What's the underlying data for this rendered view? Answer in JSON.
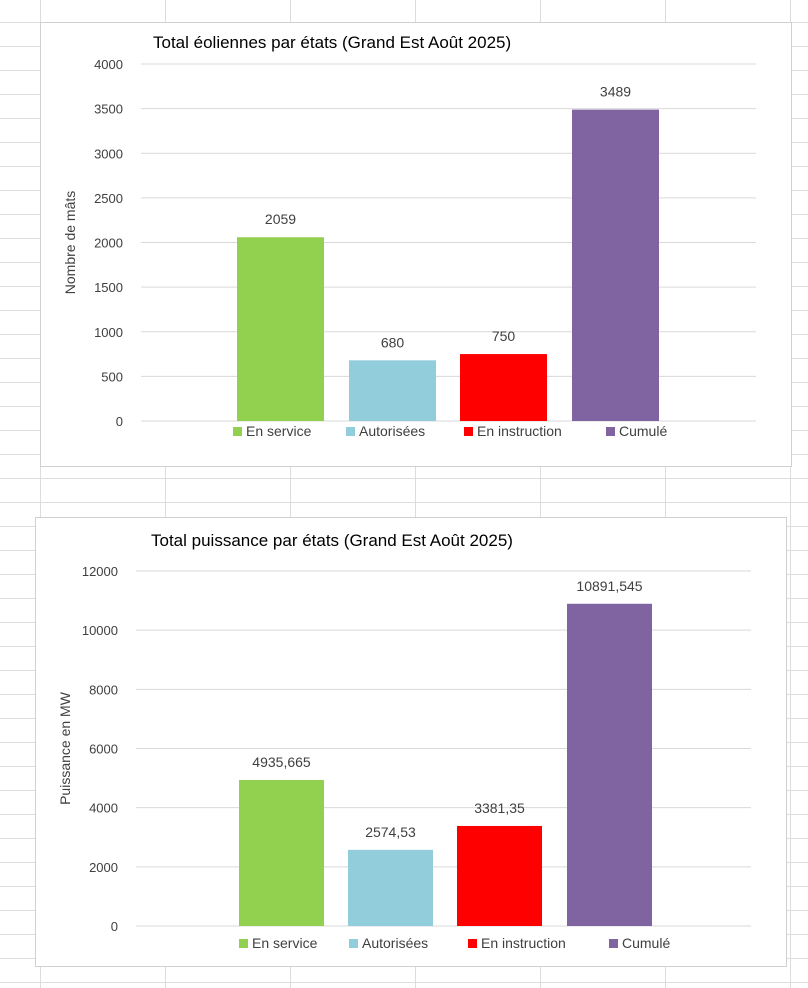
{
  "chart_data": [
    {
      "type": "bar",
      "title": "Total éoliennes par états (Grand Est Août 2025)",
      "ylabel": "Nombre de mâts",
      "xlabel": "",
      "ylim": [
        0,
        4000
      ],
      "yticks": [
        0,
        500,
        1000,
        1500,
        2000,
        2500,
        3000,
        3500,
        4000
      ],
      "y_tick_labels": [
        "0",
        "500",
        "1000",
        "1500",
        "2000",
        "2500",
        "3000",
        "3500",
        "4000"
      ],
      "grid": true,
      "legend": "bottom",
      "series": [
        {
          "name": "En service",
          "value": 2059,
          "label": "2059",
          "color": "#92d050"
        },
        {
          "name": "Autorisées",
          "value": 680,
          "label": "680",
          "color": "#92cddc"
        },
        {
          "name": "En instruction",
          "value": 750,
          "label": "750",
          "color": "#ff0000"
        },
        {
          "name": "Cumulé",
          "value": 3489,
          "label": "3489",
          "color": "#8064a2"
        }
      ]
    },
    {
      "type": "bar",
      "title": "Total puissance par états (Grand Est Août 2025)",
      "ylabel": "Puissance en MW",
      "xlabel": "",
      "ylim": [
        0,
        12000
      ],
      "yticks": [
        0,
        2000,
        4000,
        6000,
        8000,
        10000,
        12000
      ],
      "y_tick_labels": [
        "0",
        "2000",
        "4000",
        "6000",
        "8000",
        "10000",
        "12000"
      ],
      "grid": true,
      "legend": "bottom",
      "series": [
        {
          "name": "En service",
          "value": 4935.665,
          "label": "4935,665",
          "color": "#92d050"
        },
        {
          "name": "Autorisées",
          "value": 2574.53,
          "label": "2574,53",
          "color": "#92cddc"
        },
        {
          "name": "En instruction",
          "value": 3381.35,
          "label": "3381,35",
          "color": "#ff0000"
        },
        {
          "name": "Cumulé",
          "value": 10891.545,
          "label": "10891,545",
          "color": "#8064a2"
        }
      ]
    }
  ]
}
